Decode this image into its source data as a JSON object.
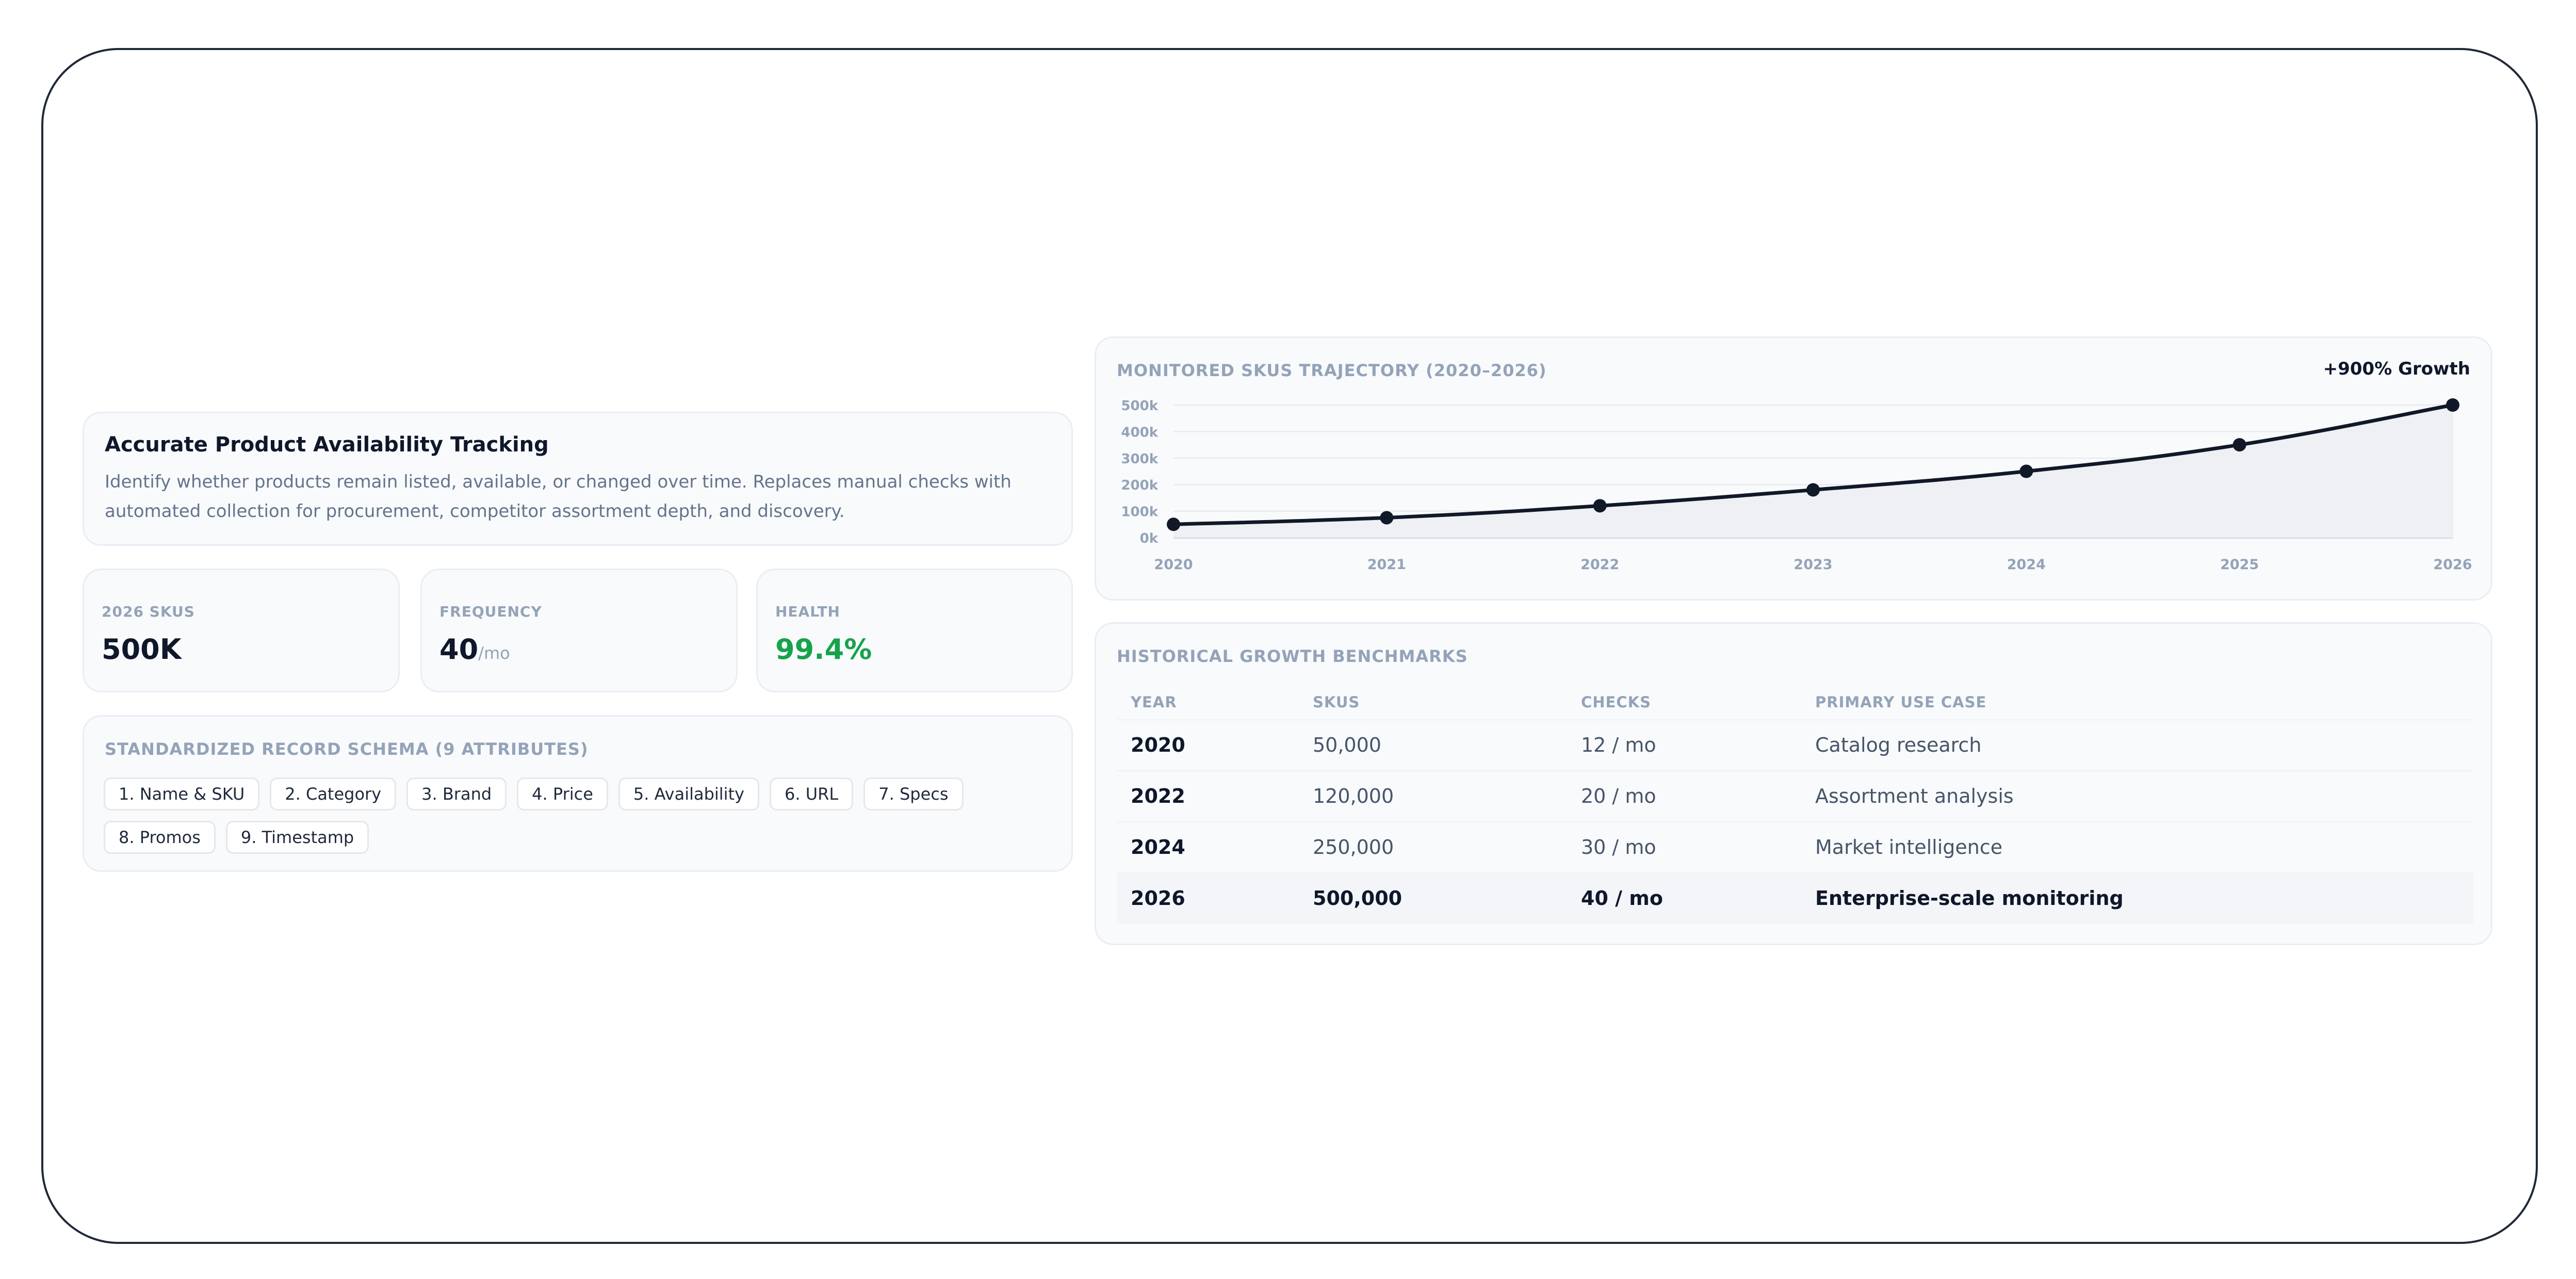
{
  "hero": {
    "title": "Accurate Product Availability Tracking",
    "description": "Identify whether products remain listed, available, or changed over time. Replaces manual checks with automated collection for procurement, competitor assortment depth, and discovery."
  },
  "stats": [
    {
      "label": "2026 SKUS",
      "value": "500K",
      "unit": ""
    },
    {
      "label": "FREQUENCY",
      "value": "40",
      "unit": "/mo"
    },
    {
      "label": "HEALTH",
      "value": "99.4%",
      "unit": ""
    }
  ],
  "schema": {
    "title": "STANDARDIZED RECORD SCHEMA (9 ATTRIBUTES)",
    "attributes": [
      "1. Name & SKU",
      "2. Category",
      "3. Brand",
      "4. Price",
      "5. Availability",
      "6. URL",
      "7. Specs",
      "8. Promos",
      "9. Timestamp"
    ]
  },
  "chart": {
    "title": "MONITORED SKUS TRAJECTORY (2020–2026)",
    "badge": "+900% Growth"
  },
  "chart_data": {
    "type": "line",
    "title": "MONITORED SKUS TRAJECTORY (2020–2026)",
    "x": [
      "2020",
      "2021",
      "2022",
      "2023",
      "2024",
      "2025",
      "2026"
    ],
    "series": [
      {
        "values": [
          50000,
          75000,
          120000,
          180000,
          250000,
          350000,
          500000
        ]
      }
    ],
    "y_ticks": [
      "0k",
      "100k",
      "200k",
      "300k",
      "400k",
      "500k"
    ],
    "ylim": [
      0,
      500000
    ],
    "grid": true,
    "area_fill": true,
    "line_color": "#111827"
  },
  "benchmarks": {
    "title": "HISTORICAL GROWTH BENCHMARKS",
    "columns": [
      "YEAR",
      "SKUS",
      "CHECKS",
      "PRIMARY USE CASE"
    ],
    "rows": [
      [
        "2020",
        "50,000",
        "12 / mo",
        "Catalog research"
      ],
      [
        "2022",
        "120,000",
        "20 / mo",
        "Assortment analysis"
      ],
      [
        "2024",
        "250,000",
        "30 / mo",
        "Market intelligence"
      ],
      [
        "2026",
        "500,000",
        "40 / mo",
        "Enterprise-scale monitoring"
      ]
    ]
  },
  "colors": {
    "accent_good": "#16a34a",
    "text_dark": "#0f172a",
    "muted": "#94a3b8"
  }
}
